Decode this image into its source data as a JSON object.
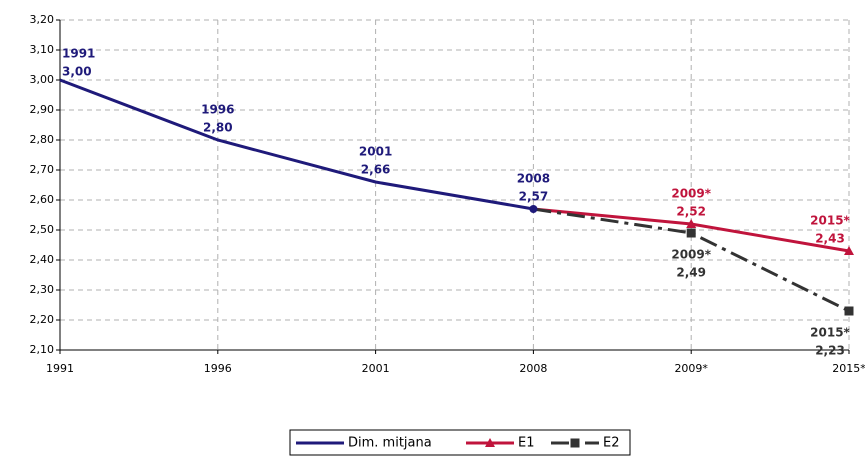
{
  "chart_data": {
    "type": "line",
    "categories": [
      "1991",
      "1996",
      "2001",
      "2008",
      "2009*",
      "2015*"
    ],
    "series": [
      {
        "name": "Dim. mitjana",
        "color": "#1f1a7a",
        "dash": "solid",
        "marker": "none",
        "values": [
          3.0,
          2.8,
          2.66,
          2.57,
          null,
          null
        ],
        "value_labels": [
          "3,00",
          "2,80",
          "2,66",
          "2,57",
          null,
          null
        ]
      },
      {
        "name": "E1",
        "color": "#c0143c",
        "dash": "solid",
        "marker": "triangle",
        "values": [
          null,
          null,
          null,
          2.57,
          2.52,
          2.43
        ],
        "value_labels": [
          null,
          null,
          null,
          null,
          "2,52",
          "2,43"
        ]
      },
      {
        "name": "E2",
        "color": "#333333",
        "dash": "dashdot",
        "marker": "square",
        "values": [
          null,
          null,
          null,
          2.57,
          2.49,
          2.23
        ],
        "value_labels": [
          null,
          null,
          null,
          null,
          "2,49",
          "2,23"
        ]
      }
    ],
    "ylim": [
      2.1,
      3.2
    ],
    "yticks": [
      {
        "value": 2.1,
        "label": "2,10"
      },
      {
        "value": 2.2,
        "label": "2,20"
      },
      {
        "value": 2.3,
        "label": "2,30"
      },
      {
        "value": 2.4,
        "label": "2,40"
      },
      {
        "value": 2.5,
        "label": "2,50"
      },
      {
        "value": 2.6,
        "label": "2,60"
      },
      {
        "value": 2.7,
        "label": "2,70"
      },
      {
        "value": 2.8,
        "label": "2,80"
      },
      {
        "value": 2.9,
        "label": "2,90"
      },
      {
        "value": 3.0,
        "label": "3,00"
      },
      {
        "value": 3.1,
        "label": "3,10"
      },
      {
        "value": 3.2,
        "label": "3,20"
      }
    ],
    "grid": true,
    "legend": "bottom"
  }
}
